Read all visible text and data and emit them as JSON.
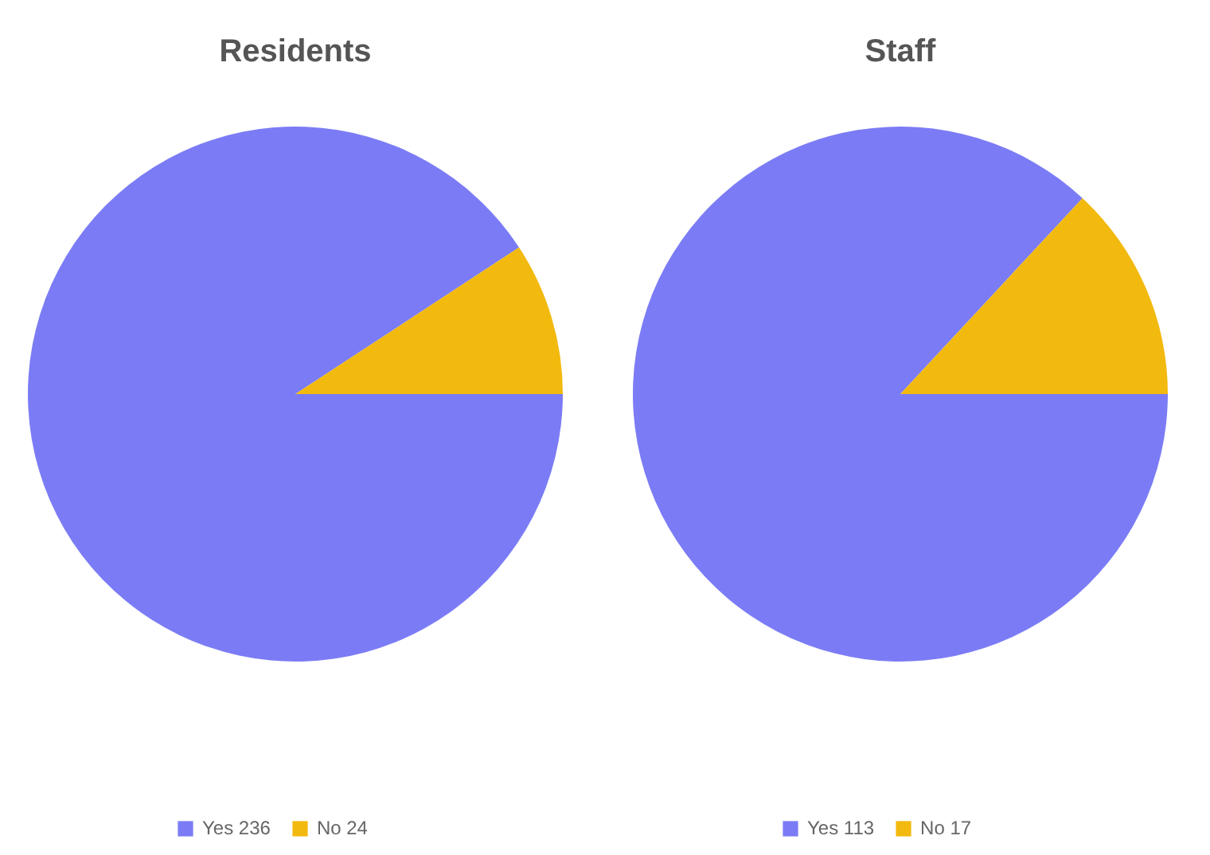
{
  "chart_data": [
    {
      "type": "pie",
      "title": "Residents",
      "categories": [
        "Yes 236",
        "No 24"
      ],
      "values": [
        236,
        24
      ],
      "colors": [
        "#7b7cf5",
        "#f2b90f"
      ],
      "legend": "bottom"
    },
    {
      "type": "pie",
      "title": "Staff",
      "categories": [
        "Yes 113",
        "No 17"
      ],
      "values": [
        113,
        17
      ],
      "colors": [
        "#7b7cf5",
        "#f2b90f"
      ],
      "legend": "bottom"
    }
  ]
}
